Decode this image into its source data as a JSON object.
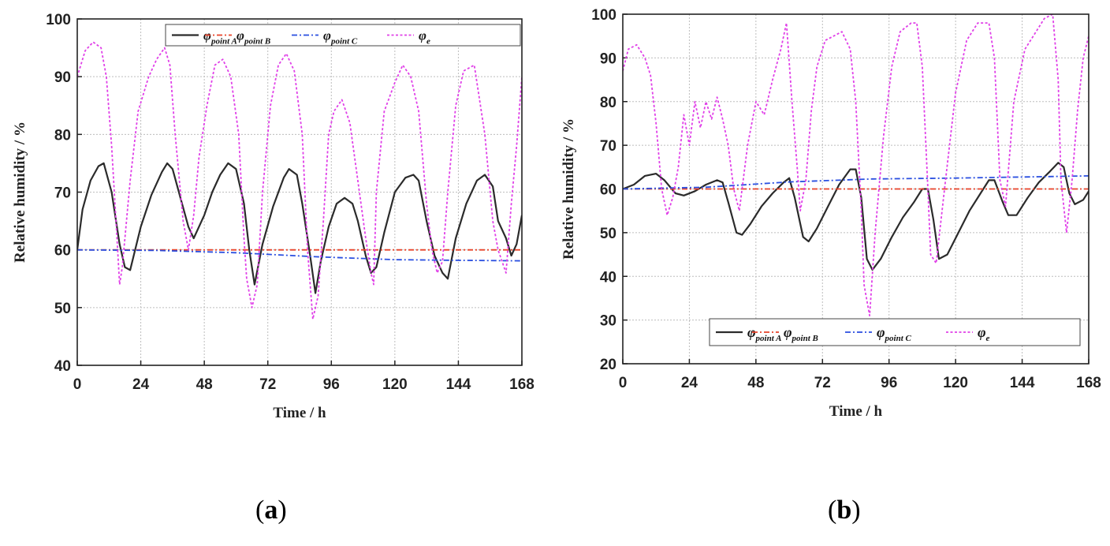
{
  "figure": {
    "panel_labels": [
      {
        "open": "(",
        "letter": "a",
        "close": ")"
      },
      {
        "open": "(",
        "letter": "b",
        "close": ")"
      }
    ],
    "colors": {
      "point_a": "#2b2b2b",
      "point_b": "#e8432a",
      "point_c": "#2a4fe0",
      "e": "#e040e8",
      "grid": "#bdbdbd",
      "frame": "#222222"
    }
  },
  "chart_data": [
    {
      "type": "line",
      "panel": "(a)",
      "title": "",
      "xlabel": "Time / h",
      "ylabel": "Relative humidity / %",
      "xlim": [
        0,
        168
      ],
      "ylim": [
        40,
        100
      ],
      "xticks": [
        0,
        24,
        48,
        72,
        96,
        120,
        144,
        168
      ],
      "yticks": [
        40,
        50,
        60,
        70,
        80,
        90,
        100
      ],
      "grid": true,
      "legend_position": "top",
      "legend_layout": "row",
      "series": [
        {
          "key": "point_a",
          "symbol": "φ",
          "subscript": "point A",
          "style": "solid",
          "x": [
            0,
            2,
            5,
            8,
            10,
            13,
            16,
            18,
            20,
            24,
            28,
            32,
            34,
            36,
            39,
            42,
            44,
            48,
            51,
            54,
            57,
            60,
            63,
            65,
            67,
            70,
            74,
            78,
            80,
            83,
            85,
            88,
            90,
            92,
            95,
            98,
            101,
            104,
            106,
            109,
            111,
            113,
            116,
            120,
            124,
            127,
            129,
            132,
            135,
            138,
            140,
            143,
            147,
            151,
            154,
            157,
            159,
            162,
            164,
            166,
            168
          ],
          "y": [
            60,
            67,
            72,
            74.5,
            75,
            70,
            61,
            57,
            56.5,
            64,
            69.5,
            73.5,
            75,
            74,
            69,
            64,
            62,
            66,
            70,
            73,
            75,
            74,
            68,
            60,
            54,
            61,
            67.5,
            72.5,
            74,
            73,
            68,
            59,
            52.5,
            58,
            64,
            68,
            69,
            68,
            65,
            59,
            56,
            57,
            63,
            70,
            72.5,
            73,
            72,
            65,
            59,
            56,
            55,
            62,
            68,
            72,
            73,
            71,
            65,
            62,
            59,
            61,
            66
          ]
        },
        {
          "key": "point_b",
          "symbol": "φ",
          "subscript": "point B",
          "style": "dashdot",
          "x": [
            0,
            168
          ],
          "y": [
            60,
            60
          ]
        },
        {
          "key": "point_c",
          "symbol": "φ",
          "subscript": "point C",
          "style": "dashdot",
          "x": [
            0,
            30,
            60,
            90,
            120,
            140,
            168
          ],
          "y": [
            60,
            59.9,
            59.5,
            58.8,
            58.3,
            58.2,
            58.1
          ]
        },
        {
          "key": "e",
          "symbol": "φ",
          "subscript": "e",
          "style": "dotted",
          "x": [
            0,
            3,
            6,
            9,
            11,
            13,
            15,
            16,
            17,
            20,
            23,
            27,
            30,
            33,
            35,
            37,
            40,
            42,
            44,
            46,
            49,
            52,
            55,
            58,
            61,
            63,
            64,
            66,
            68,
            70,
            73,
            76,
            79,
            82,
            85,
            87,
            89,
            91,
            93,
            95,
            97,
            100,
            103,
            106,
            109,
            111,
            112,
            113,
            116,
            120,
            123,
            126,
            129,
            132,
            134,
            136,
            138,
            140,
            143,
            146,
            150,
            154,
            157,
            159,
            162,
            164,
            166,
            168
          ],
          "y": [
            90,
            94.5,
            96,
            95,
            90,
            78,
            62,
            54,
            57,
            72,
            84,
            90,
            93,
            95,
            92,
            80,
            65,
            60,
            66,
            76,
            85,
            92,
            93,
            90,
            80,
            62,
            55,
            50,
            54,
            70,
            85,
            92,
            94,
            91,
            80,
            60,
            48,
            52,
            65,
            80,
            84,
            86,
            82,
            72,
            62,
            56,
            54,
            70,
            84,
            89,
            92,
            90,
            84,
            68,
            60,
            56,
            58,
            70,
            85,
            91,
            92,
            80,
            65,
            60,
            56,
            68,
            78,
            90
          ]
        }
      ]
    },
    {
      "type": "line",
      "panel": "(b)",
      "title": "",
      "xlabel": "Time / h",
      "ylabel": "Relative humidity / %",
      "xlim": [
        0,
        168
      ],
      "ylim": [
        20,
        100
      ],
      "xticks": [
        0,
        24,
        48,
        72,
        96,
        120,
        144,
        168
      ],
      "yticks": [
        20,
        30,
        40,
        50,
        60,
        70,
        80,
        90,
        100
      ],
      "grid": true,
      "legend_position": "bottom",
      "legend_layout": "row",
      "series": [
        {
          "key": "point_a",
          "symbol": "φ",
          "subscript": "point A",
          "style": "solid",
          "x": [
            0,
            4,
            8,
            12,
            15,
            19,
            22,
            26,
            30,
            34,
            36,
            38,
            41,
            43,
            46,
            50,
            54,
            58,
            60,
            62,
            65,
            67,
            70,
            74,
            78,
            82,
            84,
            86,
            88,
            90,
            93,
            97,
            101,
            105,
            108,
            110,
            112,
            114,
            117,
            121,
            125,
            129,
            132,
            134,
            137,
            139,
            142,
            146,
            150,
            154,
            157,
            159,
            161,
            163,
            166,
            168
          ],
          "y": [
            60,
            61,
            63,
            63.5,
            62,
            59,
            58.5,
            59.5,
            61,
            62,
            61.5,
            57,
            50,
            49.5,
            52,
            56,
            59,
            61.5,
            62.5,
            58,
            49,
            48,
            51,
            56,
            61,
            64.5,
            64.5,
            58,
            44,
            41.5,
            44,
            49,
            53.5,
            57,
            60,
            60,
            53,
            44,
            45,
            50,
            55,
            59,
            62,
            62,
            57,
            54,
            54,
            58,
            61.5,
            64,
            66,
            65,
            59,
            56.5,
            57.5,
            59.5
          ]
        },
        {
          "key": "point_b",
          "symbol": "φ",
          "subscript": "point B",
          "style": "dashdot",
          "x": [
            0,
            168
          ],
          "y": [
            60,
            60
          ]
        },
        {
          "key": "point_c",
          "symbol": "φ",
          "subscript": "point C",
          "style": "dashdot",
          "x": [
            0,
            30,
            60,
            90,
            120,
            150,
            168
          ],
          "y": [
            60,
            60.4,
            61.6,
            62.3,
            62.5,
            62.8,
            63
          ]
        },
        {
          "key": "e",
          "symbol": "φ",
          "subscript": "e",
          "style": "dotted",
          "x": [
            0,
            2,
            5,
            8,
            10,
            12,
            14,
            16,
            18,
            20,
            22,
            24,
            26,
            28,
            30,
            32,
            34,
            36,
            38,
            40,
            42,
            45,
            48,
            51,
            54,
            57,
            59,
            61,
            63,
            64,
            66,
            68,
            70,
            73,
            76,
            79,
            82,
            84,
            86,
            87,
            89,
            91,
            94,
            97,
            100,
            104,
            106,
            108,
            110,
            111,
            113,
            116,
            120,
            124,
            128,
            132,
            134,
            136,
            138,
            141,
            145,
            149,
            152,
            155,
            157,
            158,
            160,
            162,
            164,
            166,
            168
          ],
          "y": [
            87,
            92,
            93,
            90,
            86,
            75,
            60,
            54,
            58,
            65,
            77,
            70,
            80,
            74,
            80,
            76,
            81,
            76,
            70,
            60,
            55,
            70,
            80,
            77,
            85,
            92,
            98,
            80,
            64,
            55,
            62,
            78,
            88,
            94,
            95,
            96,
            92,
            80,
            55,
            38,
            31,
            50,
            72,
            88,
            96,
            98,
            98,
            88,
            60,
            45,
            43,
            60,
            82,
            94,
            98,
            98,
            90,
            62,
            56,
            80,
            92,
            96,
            99,
            100,
            85,
            62,
            50,
            62,
            78,
            90,
            95
          ]
        }
      ]
    }
  ]
}
